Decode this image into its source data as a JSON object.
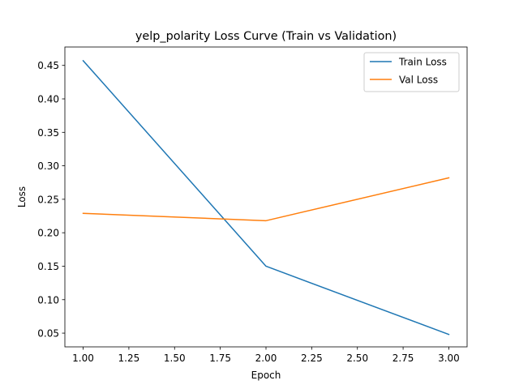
{
  "chart_data": {
    "type": "line",
    "title": "yelp_polarity Loss Curve (Train vs Validation)",
    "xlabel": "Epoch",
    "ylabel": "Loss",
    "xlim": [
      0.9,
      3.1
    ],
    "ylim": [
      0.0295,
      0.4775
    ],
    "xticks": [
      1.0,
      1.25,
      1.5,
      1.75,
      2.0,
      2.25,
      2.5,
      2.75,
      3.0
    ],
    "xtick_labels": [
      "1.00",
      "1.25",
      "1.50",
      "1.75",
      "2.00",
      "2.25",
      "2.50",
      "2.75",
      "3.00"
    ],
    "yticks": [
      0.05,
      0.1,
      0.15,
      0.2,
      0.25,
      0.3,
      0.35,
      0.4,
      0.45
    ],
    "ytick_labels": [
      "0.05",
      "0.10",
      "0.15",
      "0.20",
      "0.25",
      "0.30",
      "0.35",
      "0.40",
      "0.45"
    ],
    "grid": false,
    "legend_position": "upper right",
    "x": [
      1,
      2,
      3
    ],
    "series": [
      {
        "name": "Train Loss",
        "color": "#1f77b4",
        "values": [
          0.457,
          0.15,
          0.048
        ]
      },
      {
        "name": "Val Loss",
        "color": "#ff7f0e",
        "values": [
          0.229,
          0.218,
          0.282
        ]
      }
    ]
  }
}
